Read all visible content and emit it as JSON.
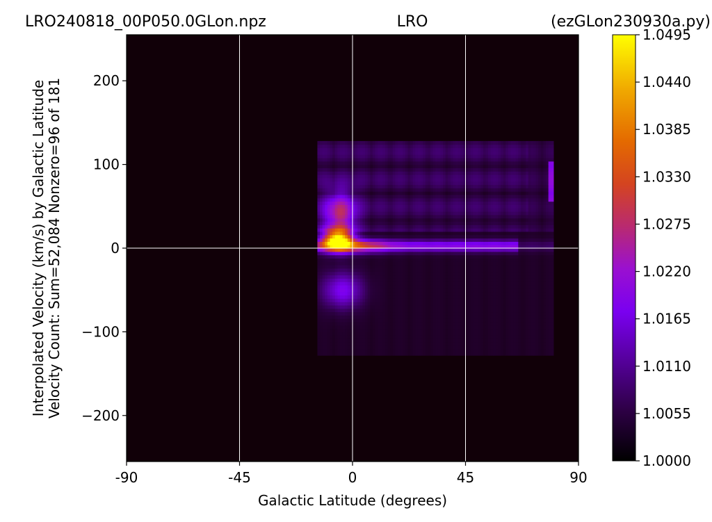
{
  "chart_data": {
    "type": "heatmap",
    "title_left": "LRO240818_00P050.0GLon.npz",
    "title_center": "LRO",
    "title_right": "(ezGLon230930a.py)",
    "xlabel": "Galactic Latitude (degrees)",
    "ylabel_line1": "Interpolated Velocity (km/s) by Galactic Latitude",
    "ylabel_line2": "Velocity Count: Sum=52,084 Nonzero=96 of 181",
    "xlim": [
      -90,
      90
    ],
    "ylim": [
      -255,
      255
    ],
    "x_ticks": [
      -90,
      -45,
      0,
      45,
      90
    ],
    "x_tick_labels": [
      "-90",
      "-45",
      "0",
      "45",
      "90"
    ],
    "y_ticks": [
      -200,
      -100,
      0,
      100,
      200
    ],
    "y_tick_labels": [
      "−200",
      "−100",
      "0",
      "100",
      "200"
    ],
    "grid": true,
    "colormap": "gnuplot",
    "colorbar": {
      "min": 1.0,
      "max": 1.0495,
      "ticks": [
        1.0,
        1.0055,
        1.011,
        1.0165,
        1.022,
        1.0275,
        1.033,
        1.0385,
        1.044,
        1.0495
      ],
      "tick_labels": [
        "1.0000",
        "1.0055",
        "1.0110",
        "1.0165",
        "1.0220",
        "1.0275",
        "1.0330",
        "1.0385",
        "1.0440",
        "1.0495"
      ]
    },
    "data_extent": {
      "latitude": [
        -14,
        80
      ],
      "velocity": [
        -128,
        128
      ]
    },
    "features": [
      {
        "latitude": -6,
        "velocity": 10,
        "peak": 1.0495
      },
      {
        "latitude": -5,
        "velocity": 35,
        "peak": 1.034
      },
      {
        "latitude": 3,
        "velocity": 2,
        "peak": 1.03
      },
      {
        "latitude": -4,
        "velocity": -50,
        "peak": 1.014
      },
      {
        "latitude": 80,
        "velocity": 80,
        "peak": 1.014
      }
    ]
  }
}
